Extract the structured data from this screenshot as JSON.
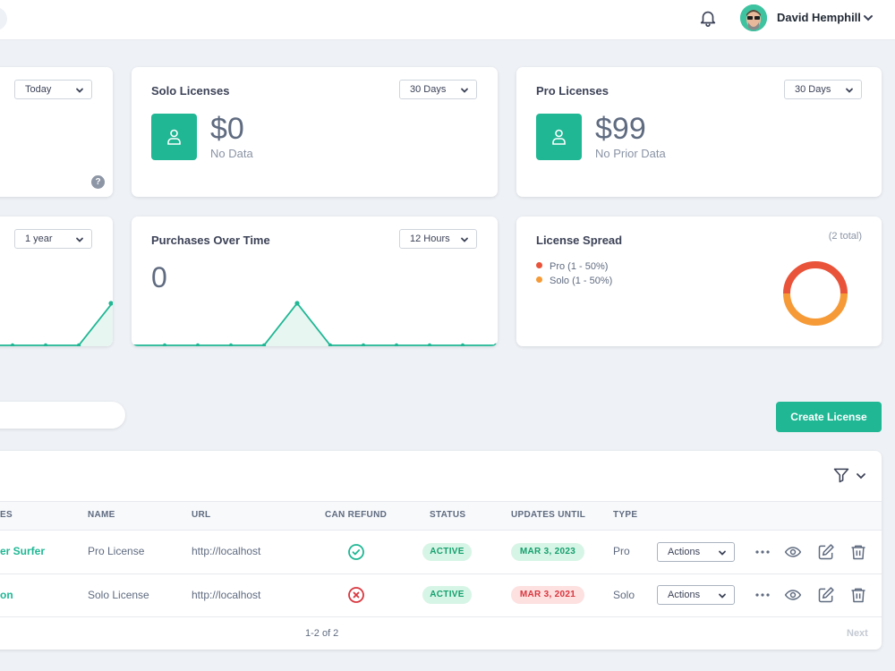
{
  "header": {
    "user_name": "David Hemphill",
    "bell_icon": "bell-icon",
    "chevron_icon": "chevron-down-icon"
  },
  "cards": {
    "first_card": {
      "range": "Today"
    },
    "solo_licenses": {
      "title": "Solo Licenses",
      "range": "30 Days",
      "amount": "$0",
      "subtitle": "No Data"
    },
    "pro_licenses": {
      "title": "Pro Licenses",
      "range": "30 Days",
      "amount": "$99",
      "subtitle": "No Prior Data"
    },
    "left_trend": {
      "range": "1 year"
    },
    "purchases": {
      "title": "Purchases Over Time",
      "range": "12 Hours",
      "value": "0"
    },
    "license_spread": {
      "title": "License Spread",
      "total": "(2 total)",
      "legend": [
        {
          "label": "Pro (1 - 50%)",
          "color": "#e9533a"
        },
        {
          "label": "Solo (1 - 50%)",
          "color": "#f59a36"
        }
      ]
    }
  },
  "chart_data": [
    {
      "type": "line",
      "title": "Purchases Over Time",
      "x": [
        1,
        2,
        3,
        4,
        5,
        6,
        7,
        8,
        9,
        10,
        11,
        12
      ],
      "series": [
        {
          "values": [
            0,
            0,
            0,
            0,
            0,
            1,
            0,
            0,
            0,
            0,
            0,
            0
          ]
        }
      ],
      "ylim": [
        0,
        1.3
      ]
    },
    {
      "type": "pie",
      "title": "License Spread",
      "categories": [
        "Pro (1 - 50%)",
        "Solo (1 - 50%)"
      ],
      "values": [
        1,
        1
      ],
      "colors": [
        "#e9533a",
        "#f59a36"
      ]
    }
  ],
  "toolbar": {
    "create_label": "Create License"
  },
  "table": {
    "columns": [
      "ES",
      "NAME",
      "URL",
      "CAN REFUND",
      "STATUS",
      "UPDATES UNTIL",
      "TYPE"
    ],
    "rows": [
      {
        "owner": "er Surfer",
        "name": "Pro License",
        "url": "http://localhost",
        "can_refund": true,
        "status": "ACTIVE",
        "updates_until": "MAR 3, 2023",
        "type": "Pro",
        "actions": "Actions"
      },
      {
        "owner": "on",
        "name": "Solo License",
        "url": "http://localhost",
        "can_refund": false,
        "status": "ACTIVE",
        "updates_until": "MAR 3, 2021",
        "type": "Solo",
        "actions": "Actions"
      }
    ],
    "pagination": {
      "range": "1-2 of 2",
      "next": "Next"
    }
  }
}
